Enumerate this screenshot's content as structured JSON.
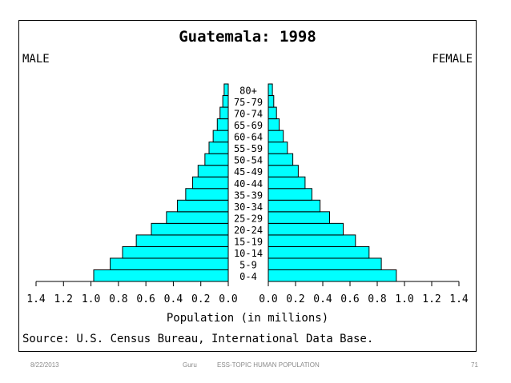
{
  "footer": {
    "date": "8/22/2013",
    "author": "Guru",
    "topic": "ESS-TOPIC HUMAN POPULATION",
    "page": "71"
  },
  "chart_data": {
    "type": "bar",
    "subtype": "population-pyramid",
    "title": "Guatemala: 1998",
    "left_label": "MALE",
    "right_label": "FEMALE",
    "xlabel": "Population (in millions)",
    "source": "Source: U.S. Census Bureau, International Data Base.",
    "xlim": [
      0,
      1.4
    ],
    "x_ticks": [
      0.0,
      0.2,
      0.4,
      0.6,
      0.8,
      1.0,
      1.2,
      1.4
    ],
    "x_tick_labels": [
      "0.0",
      "0.2",
      "0.4",
      "0.6",
      "0.8",
      "1.0",
      "1.2",
      "1.4"
    ],
    "categories": [
      "0-4",
      "5-9",
      "10-14",
      "15-19",
      "20-24",
      "25-29",
      "30-34",
      "35-39",
      "40-44",
      "45-49",
      "50-54",
      "55-59",
      "60-64",
      "65-69",
      "70-74",
      "75-79",
      "80+"
    ],
    "series": [
      {
        "name": "MALE",
        "values": [
          0.98,
          0.86,
          0.77,
          0.67,
          0.56,
          0.45,
          0.37,
          0.31,
          0.26,
          0.22,
          0.17,
          0.14,
          0.11,
          0.08,
          0.06,
          0.04,
          0.03
        ]
      },
      {
        "name": "FEMALE",
        "values": [
          0.94,
          0.83,
          0.74,
          0.64,
          0.55,
          0.45,
          0.38,
          0.32,
          0.27,
          0.22,
          0.18,
          0.14,
          0.11,
          0.08,
          0.06,
          0.04,
          0.03
        ]
      }
    ],
    "colors": {
      "bar_fill": "#00ffff",
      "bar_stroke": "#000000",
      "text": "#000000"
    },
    "grid": false
  }
}
